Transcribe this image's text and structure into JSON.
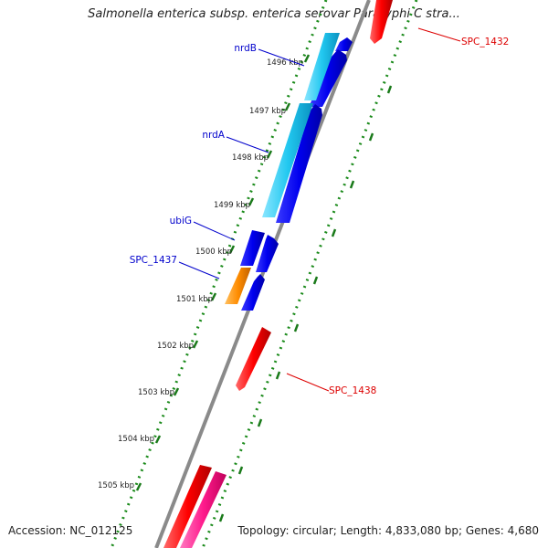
{
  "title": "Salmonella enterica subsp. enterica serovar Paratyphi C stra...",
  "footer": {
    "accession": "Accession: NC_012125",
    "summary": "Topology: circular; Length: 4,833,080 bp; Genes: 4,680"
  },
  "ticks": [
    "1496 kbp",
    "1497 kbp",
    "1498 kbp",
    "1499 kbp",
    "1500 kbp",
    "1501 kbp",
    "1502 kbp",
    "1503 kbp",
    "1504 kbp",
    "1505 kbp"
  ],
  "gene_labels": [
    {
      "name": "nrdB",
      "color": "#0000cc"
    },
    {
      "name": "nrdA",
      "color": "#0000cc"
    },
    {
      "name": "ubiG",
      "color": "#0000cc"
    },
    {
      "name": "SPC_1437",
      "color": "#0000cc"
    },
    {
      "name": "SPC_1432",
      "color": "#dd0000"
    },
    {
      "name": "SPC_1438",
      "color": "#dd0000"
    }
  ],
  "colors": {
    "backbone": "#8a8a8a",
    "cds_blue": "#0000ee",
    "cds_cyan": "#22c8f0",
    "cds_red": "#ff0000",
    "cds_orange": "#ff8c00",
    "cds_pink": "#ff1a8c",
    "dotted_track": "#1a8a1a",
    "tick": "#1a7a1a"
  }
}
